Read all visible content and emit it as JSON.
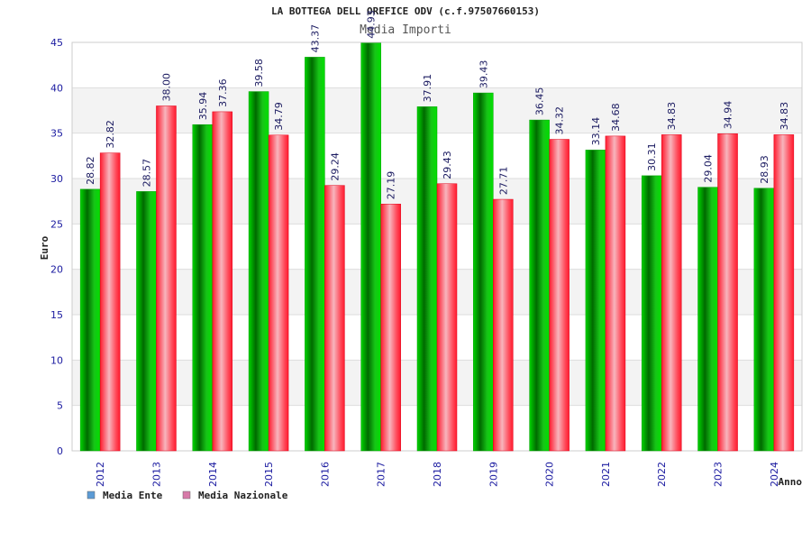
{
  "chart_data": {
    "type": "bar",
    "title": "LA BOTTEGA DELL OREFICE ODV (c.f.97507660153)",
    "subtitle": "Media Importi",
    "xlabel": "Anno",
    "ylabel": "Euro",
    "ylim": [
      0,
      45
    ],
    "yticks": [
      0,
      5,
      10,
      15,
      20,
      25,
      30,
      35,
      40,
      45
    ],
    "grid": true,
    "legend_position": "bottom-left",
    "categories": [
      "2012",
      "2013",
      "2014",
      "2015",
      "2016",
      "2017",
      "2018",
      "2019",
      "2020",
      "2021",
      "2022",
      "2023",
      "2024"
    ],
    "series": [
      {
        "name": "Media Ente",
        "color": "#00c000",
        "legend_color": "#5b9bd5",
        "values": [
          28.82,
          28.57,
          35.94,
          39.58,
          43.37,
          44.93,
          37.91,
          39.43,
          36.45,
          33.14,
          30.31,
          29.04,
          28.93
        ]
      },
      {
        "name": "Media Nazionale",
        "color": "#ff1a2e",
        "legend_color": "#d77aa8",
        "values": [
          32.82,
          38.0,
          37.36,
          34.79,
          29.24,
          27.19,
          29.43,
          27.71,
          34.32,
          34.68,
          34.83,
          34.94,
          34.83
        ]
      }
    ]
  }
}
